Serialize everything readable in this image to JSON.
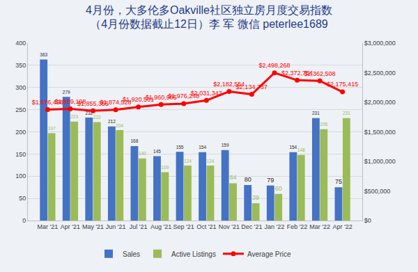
{
  "chart_data": {
    "type": "bar",
    "title": "4月份，大多伦多Oakville社区独立房月度交易指数",
    "subtitle": "（4月份数据截止12日）李 军 微信 peterlee1689",
    "categories": [
      "Mar '21",
      "Apr '21",
      "May '21",
      "Jun '21",
      "Jul '21",
      "Aug '21",
      "Sep '21",
      "Oct '21",
      "Nov '21",
      "Dec '21",
      "Jan '22",
      "Feb '22",
      "Mar '22",
      "Apr '22"
    ],
    "series": [
      {
        "name": "Sales",
        "type": "bar",
        "color": "#4472c4",
        "values": [
          363,
          279,
          232,
          212,
          168,
          145,
          155,
          154,
          159,
          80,
          79,
          154,
          231,
          75
        ]
      },
      {
        "name": "Active Listings",
        "type": "bar",
        "color": "#9bbb59",
        "values": [
          197,
          223,
          222,
          204,
          140,
          109,
          124,
          124,
          84,
          39,
          60,
          148,
          206,
          231
        ]
      },
      {
        "name": "Average Price",
        "type": "line",
        "axis": "y2",
        "color": "#ff0000",
        "marker": "circle",
        "values": [
          1876498,
          1889198,
          1855355,
          1874528,
          1920531,
          1960905,
          1976248,
          2031343,
          2182554,
          2134737,
          2498268,
          2372754,
          2362508,
          2175415
        ],
        "value_labels": [
          "$1,876,498",
          "$1,889,198",
          "$1,855,355",
          "$1,874,528",
          "$1,920,531",
          "$1,960,905",
          "$1,976,248",
          "$2,031,343",
          "$2,182,554",
          "$2,134,737",
          "$2,498,268",
          "$2,372,754",
          "$2,362,508",
          "$2,175,415"
        ]
      }
    ],
    "ylim": [
      0,
      400
    ],
    "yticks": [
      0,
      50,
      100,
      150,
      200,
      250,
      300,
      350,
      400
    ],
    "y2lim": [
      0,
      3000000
    ],
    "y2ticks": [
      {
        "value": 0,
        "label": "$0"
      },
      {
        "value": 500000,
        "label": "$500,000"
      },
      {
        "value": 1000000,
        "label": "$1,000,000"
      },
      {
        "value": 1500000,
        "label": "$1,500,000"
      },
      {
        "value": 2000000,
        "label": "$2,000,000"
      },
      {
        "value": 2500000,
        "label": "$2,500,000"
      },
      {
        "value": 3000000,
        "label": "$3,000,000"
      }
    ],
    "grid": true,
    "legend": "bottom",
    "data_labels": true
  }
}
